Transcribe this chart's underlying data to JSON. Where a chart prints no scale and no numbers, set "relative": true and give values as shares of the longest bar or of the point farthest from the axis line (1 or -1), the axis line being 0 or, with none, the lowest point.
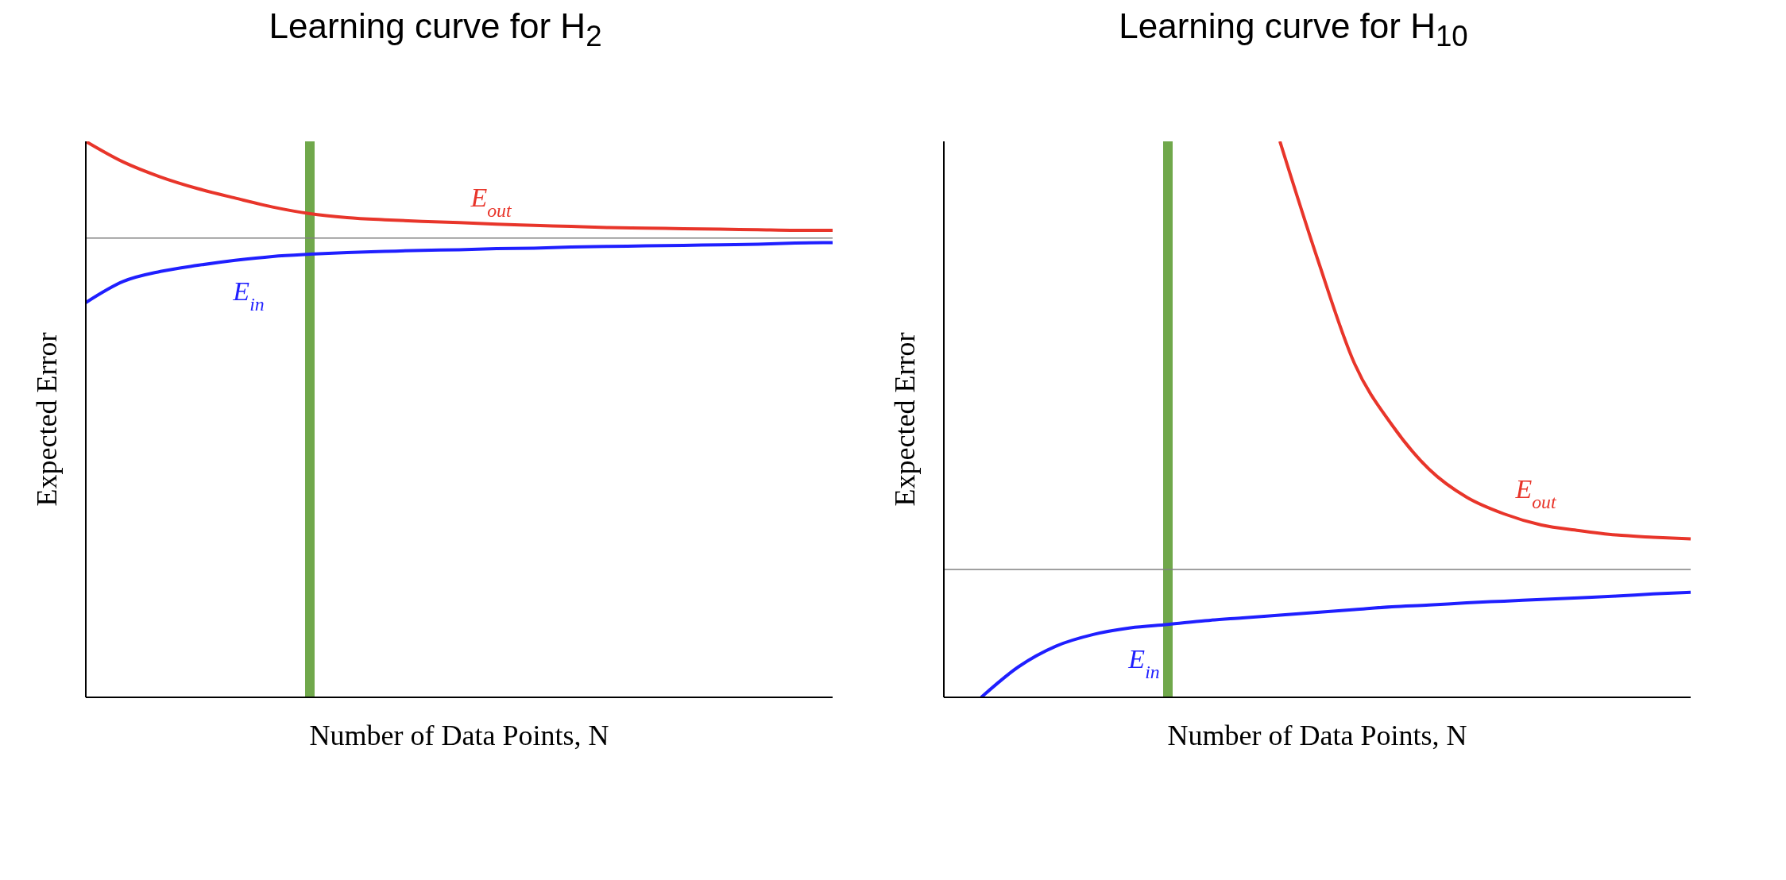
{
  "chart_data": [
    {
      "type": "line",
      "title": "Learning curve for H$_{2}$",
      "xlabel": "Number of Data Points, N",
      "ylabel": "Expected Error",
      "relative": true,
      "tick_labels": false,
      "grid": false,
      "legend": false,
      "marker": "none",
      "line_style": "solid",
      "categories": [
        null,
        null,
        null,
        null,
        null,
        null,
        null,
        null,
        null,
        null,
        null,
        null,
        null,
        null,
        null,
        null,
        null,
        null,
        null,
        null,
        null
      ],
      "series": [
        {
          "name": "E$_{out}$",
          "color": "#e8352a",
          "values": [
            1.0,
            0.963,
            0.936,
            0.915,
            0.898,
            0.882,
            0.87,
            0.863,
            0.859,
            0.856,
            0.854,
            0.851,
            0.849,
            0.847,
            0.845,
            0.844,
            0.843,
            0.842,
            0.841,
            0.84,
            0.84
          ]
        },
        {
          "name": "E$_{in}$",
          "color": "#1f1fff",
          "values": [
            0.71,
            0.748,
            0.766,
            0.777,
            0.786,
            0.793,
            0.797,
            0.8,
            0.802,
            0.804,
            0.805,
            0.807,
            0.808,
            0.81,
            0.811,
            0.812,
            0.813,
            0.814,
            0.815,
            0.817,
            0.818
          ]
        }
      ],
      "ref_lines": [
        {
          "axis": "y",
          "value": 0.826,
          "color": "#808080"
        }
      ]
    },
    {
      "type": "line",
      "title": "Learning curve for H$_{10}$",
      "xlabel": "Number of Data Points, N",
      "ylabel": "Expected Error",
      "relative": true,
      "tick_labels": false,
      "grid": false,
      "legend": false,
      "marker": "none",
      "line_style": "solid",
      "categories": [
        null,
        null,
        null,
        null,
        null,
        null,
        null,
        null,
        null,
        null,
        null,
        null,
        null,
        null,
        null,
        null,
        null,
        null,
        null,
        null,
        null
      ],
      "series": [
        {
          "name": "E$_{out}$",
          "color": "#e8352a",
          "values": [
            null,
            null,
            null,
            null,
            null,
            null,
            null,
            null,
            null,
            1.0,
            0.79,
            0.6,
            0.49,
            0.41,
            0.36,
            0.33,
            0.31,
            0.3,
            0.292,
            0.288,
            0.285
          ]
        },
        {
          "name": "E$_{in}$",
          "color": "#1f1fff",
          "values": [
            null,
            0,
            0.055,
            0.092,
            0.113,
            0.125,
            0.131,
            0.138,
            0.143,
            0.148,
            0.153,
            0.158,
            0.163,
            0.166,
            0.17,
            0.173,
            0.176,
            0.179,
            0.182,
            0.186,
            0.189
          ]
        }
      ],
      "ref_lines": [
        {
          "axis": "y",
          "value": 0.23,
          "color": "#808080"
        }
      ]
    }
  ]
}
